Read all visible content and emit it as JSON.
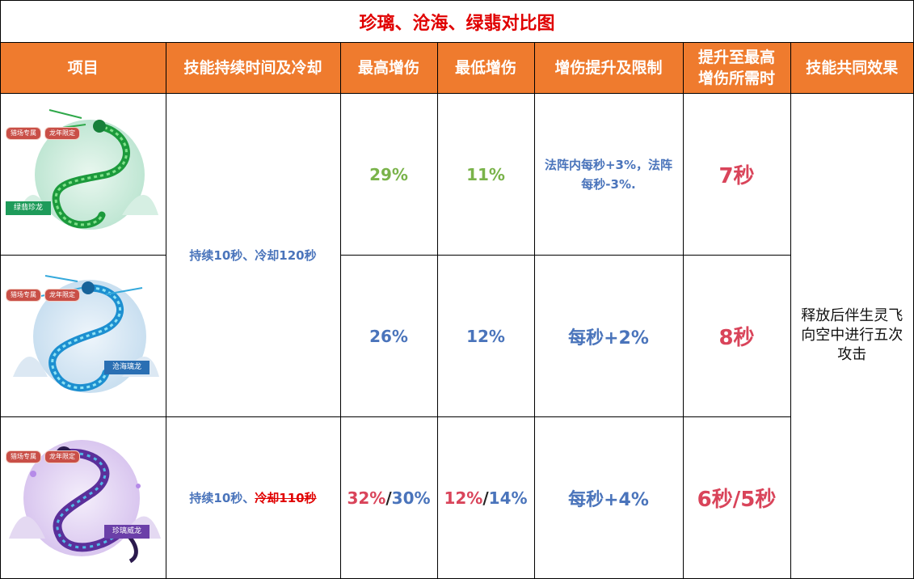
{
  "title": "珍璃、沧海、绿翡对比图",
  "headers": [
    "项目",
    "技能持续时间及冷却",
    "最高增伤",
    "最低增伤",
    "增伤提升及限制",
    "提升至最高增伤所需时",
    "技能共同效果"
  ],
  "header_line1": "提升至最高",
  "header_line2": "增伤所需时",
  "badges": [
    "猎场专属",
    "龙年限定"
  ],
  "rows": [
    {
      "dragon_name": "绿翡珍龙",
      "duration": "持续10秒、冷却120秒",
      "max_boost": "29%",
      "min_boost": "11%",
      "boost_rule": "法阵内每秒+3%，法阵每秒-3%.",
      "time_to_max": "7秒"
    },
    {
      "dragon_name": "沧海璃龙",
      "max_boost": "26%",
      "min_boost": "12%",
      "boost_rule": "每秒+2%",
      "time_to_max": "8秒"
    },
    {
      "dragon_name": "珍璃威龙",
      "duration_prefix": "持续10秒、",
      "duration_struck": "冷却110秒",
      "max_boost_a": "32%",
      "max_boost_b": "30%",
      "min_boost_a": "12%",
      "min_boost_b": "14%",
      "boost_rule": "每秒+4%",
      "time_to_max": "6秒/5秒"
    }
  ],
  "common_effect": "释放后伴生灵飞向空中进行五次攻击",
  "colors": {
    "header_bg": "#ef7b2e",
    "title": "#e00000",
    "blue": "#4a74bb",
    "green": "#7ab34a",
    "red": "#d9445a"
  }
}
